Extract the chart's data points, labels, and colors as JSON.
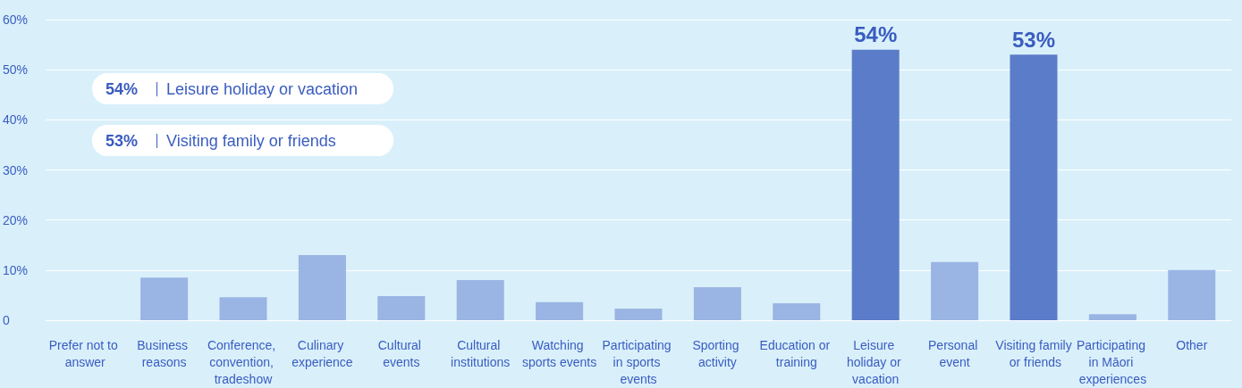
{
  "chart_data": {
    "type": "bar",
    "categories": [
      "Prefer not to answer",
      "Business reasons",
      "Conference, convention, tradeshow",
      "Culinary experience",
      "Cultural events",
      "Cultural institutions",
      "Watching sports events",
      "Participating in sports events",
      "Sporting activity",
      "Education or training",
      "Leisure holiday or vacation",
      "Personal event",
      "Visiting family or friends",
      "Participating in Māori experiences",
      "Other"
    ],
    "values": [
      0,
      8.5,
      4.6,
      13,
      4.8,
      8,
      3.6,
      2.3,
      6.6,
      3.4,
      54,
      11.6,
      53,
      1.2,
      10
    ],
    "colors": [
      "#9ab5e3",
      "#9ab5e3",
      "#9ab5e3",
      "#9ab5e3",
      "#9ab5e3",
      "#9ab5e3",
      "#9ab5e3",
      "#9ab5e3",
      "#9ab5e3",
      "#9ab5e3",
      "#5b7cc8",
      "#9ab5e3",
      "#5b7cc8",
      "#9ab5e3",
      "#9ab5e3"
    ],
    "value_labels": [
      null,
      null,
      null,
      null,
      null,
      null,
      null,
      null,
      null,
      null,
      "54%",
      null,
      "53%",
      null,
      null
    ],
    "ylim": [
      0,
      60
    ],
    "yticks": [
      0,
      {
        "value": 10,
        "label": "10%"
      },
      {
        "value": 20,
        "label": "20%"
      },
      {
        "value": 30,
        "label": "30%"
      },
      {
        "value": 40,
        "label": "40%"
      },
      {
        "value": 50,
        "label": "50%"
      },
      {
        "value": 60,
        "label": "60%"
      }
    ],
    "grid": "y",
    "annotations": [
      "54% Leisure holiday or vacation",
      "53% Visiting family or friends"
    ]
  }
}
